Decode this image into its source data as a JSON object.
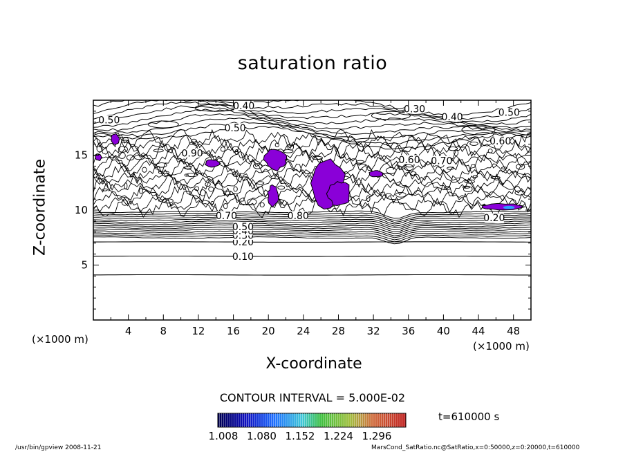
{
  "chart_data": {
    "type": "contour",
    "title": "saturation ratio",
    "xlabel": "X-coordinate",
    "ylabel": "Z-coordinate",
    "x_unit_label": "(×1000 m)",
    "xlim": [
      0,
      50
    ],
    "ylim": [
      0,
      20
    ],
    "x_ticks": [
      "4",
      "8",
      "12",
      "16",
      "20",
      "24",
      "28",
      "32",
      "36",
      "40",
      "44",
      "48"
    ],
    "y_ticks": [
      "5",
      "10",
      "15"
    ],
    "contour_interval_text": "CONTOUR INTERVAL = 5.000E-02",
    "time_label": "t=610000 s",
    "colorbar_labels": [
      "1.008",
      "1.080",
      "1.152",
      "1.224",
      "1.296"
    ],
    "contour_labels": [
      {
        "text": "0.10",
        "x": 17.1,
        "z": 5.8
      },
      {
        "text": "0.20",
        "x": 17.1,
        "z": 7.1
      },
      {
        "text": "0.30",
        "x": 17.1,
        "z": 7.7
      },
      {
        "text": "0.40",
        "x": 17.1,
        "z": 8.1
      },
      {
        "text": "0.50",
        "x": 17.1,
        "z": 8.5
      },
      {
        "text": "0.70",
        "x": 15.2,
        "z": 9.5
      },
      {
        "text": "0.80",
        "x": 23.4,
        "z": 9.5
      },
      {
        "text": "0.20",
        "x": 45.8,
        "z": 9.3
      },
      {
        "text": "0.40",
        "x": 17.2,
        "z": 19.5
      },
      {
        "text": "0.30",
        "x": 36.7,
        "z": 19.2
      },
      {
        "text": "0.40",
        "x": 41.0,
        "z": 18.5
      },
      {
        "text": "0.50",
        "x": 47.5,
        "z": 18.9
      },
      {
        "text": "0.50",
        "x": 16.2,
        "z": 17.5
      },
      {
        "text": "0.60",
        "x": 36.1,
        "z": 14.6
      },
      {
        "text": "0.70",
        "x": 39.8,
        "z": 14.5
      },
      {
        "text": "0.90",
        "x": 11.3,
        "z": 15.2
      },
      {
        "text": "0.50",
        "x": 1.8,
        "z": 18.2
      },
      {
        "text": "0.60",
        "x": 46.5,
        "z": 16.3
      }
    ],
    "supersaturated_regions": [
      {
        "x": [
          2.0,
          3.0
        ],
        "z": [
          15.9,
          17.0
        ]
      },
      {
        "x": [
          0.2,
          1.0
        ],
        "z": [
          14.5,
          15.1
        ]
      },
      {
        "x": [
          12.7,
          14.5
        ],
        "z": [
          13.9,
          14.6
        ]
      },
      {
        "x": [
          19.5,
          22.1
        ],
        "z": [
          13.6,
          15.6
        ]
      },
      {
        "x": [
          19.9,
          21.2
        ],
        "z": [
          10.3,
          12.3
        ]
      },
      {
        "x": [
          24.6,
          28.9
        ],
        "z": [
          10.1,
          14.8
        ]
      },
      {
        "x": [
          26.7,
          29.5
        ],
        "z": [
          10.3,
          12.7
        ]
      },
      {
        "x": [
          31.5,
          33.2
        ],
        "z": [
          13.0,
          13.6
        ]
      },
      {
        "x": [
          44.1,
          49.3
        ],
        "z": [
          10.0,
          10.6
        ]
      }
    ],
    "colors": {
      "fill": "#8a00d8",
      "fill_dark": "#4a1bd0",
      "fill_light": "#2aa0ff",
      "line": "#000000"
    }
  },
  "footer": {
    "left": "/usr/bin/gpview   2008-11-21",
    "right": "MarsCond_SatRatio.nc@SatRatio,x=0:50000,z=0:20000,t=610000"
  }
}
